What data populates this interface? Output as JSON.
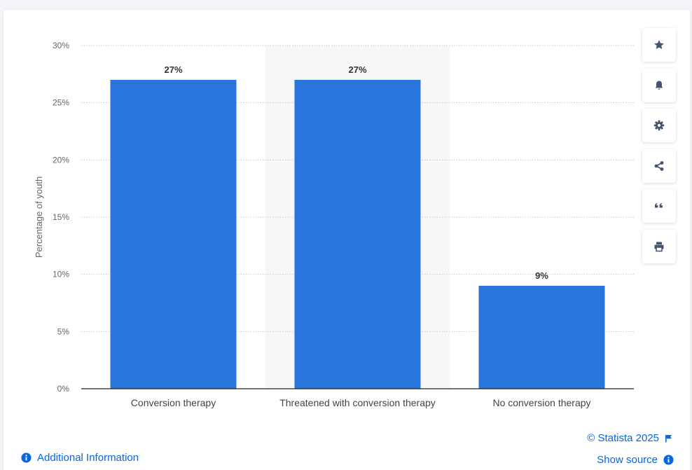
{
  "chart_data": {
    "type": "bar",
    "categories": [
      "Conversion therapy",
      "Threatened with conversion therapy",
      "No conversion therapy"
    ],
    "values": [
      27,
      27,
      9
    ],
    "data_labels": [
      "27%",
      "27%",
      "9%"
    ],
    "title": "",
    "xlabel": "",
    "ylabel": "Percentage of youth",
    "ylim": [
      0,
      30
    ],
    "yticks": [
      0,
      5,
      10,
      15,
      20,
      25,
      30
    ],
    "ytick_labels": [
      "0%",
      "5%",
      "10%",
      "15%",
      "20%",
      "25%",
      "30%"
    ],
    "grid": true,
    "highlighted_category_index": 1,
    "bar_color": "#2876dd"
  },
  "toolbar": {
    "buttons": [
      {
        "name": "favorite",
        "icon": "star-icon"
      },
      {
        "name": "notifications",
        "icon": "bell-icon"
      },
      {
        "name": "settings",
        "icon": "gear-icon"
      },
      {
        "name": "share",
        "icon": "share-icon"
      },
      {
        "name": "cite",
        "icon": "quote-icon"
      },
      {
        "name": "print",
        "icon": "print-icon"
      }
    ]
  },
  "footer": {
    "additional_info": "Additional Information",
    "credit": "© Statista 2025",
    "show_source": "Show source"
  },
  "colors": {
    "accent": "#0666e5",
    "bar": "#2876dd",
    "highlight_band": "#f7f7f7",
    "icon": "#44546a"
  }
}
